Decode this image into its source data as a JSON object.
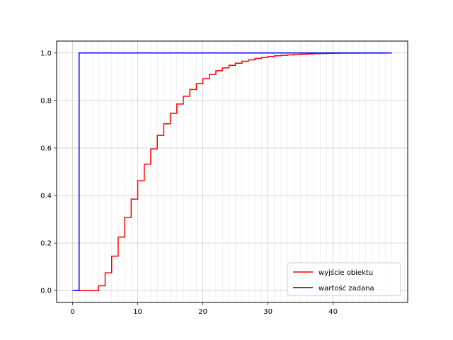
{
  "chart_data": {
    "type": "line",
    "step": "post",
    "xlim": [
      -2.45,
      51.45
    ],
    "ylim": [
      -0.05,
      1.05
    ],
    "x_ticks": [
      0,
      10,
      20,
      30,
      40
    ],
    "y_ticks": [
      0.0,
      0.2,
      0.4,
      0.6,
      0.8,
      1.0
    ],
    "x_tick_labels": [
      "0",
      "10",
      "20",
      "30",
      "40"
    ],
    "y_tick_labels": [
      "0.0",
      "0.2",
      "0.4",
      "0.6",
      "0.8",
      "1.0"
    ],
    "grid": {
      "major": true,
      "minor_x": true
    },
    "legend_position": "lower-right",
    "series": [
      {
        "name": "wyjście obiektu",
        "color": "#ff0000",
        "x": [
          1,
          2,
          3,
          4,
          5,
          6,
          7,
          8,
          9,
          10,
          11,
          12,
          13,
          14,
          15,
          16,
          17,
          18,
          19,
          20,
          21,
          22,
          23,
          24,
          25,
          26,
          27,
          28,
          29,
          30,
          31,
          32,
          33,
          34,
          35,
          36,
          37,
          38,
          39,
          40,
          41,
          42,
          43,
          44,
          45,
          46,
          47,
          48,
          49
        ],
        "y": [
          0,
          0,
          0,
          0.02,
          0.075,
          0.145,
          0.225,
          0.308,
          0.385,
          0.462,
          0.532,
          0.596,
          0.653,
          0.702,
          0.746,
          0.785,
          0.818,
          0.846,
          0.871,
          0.892,
          0.91,
          0.925,
          0.937,
          0.948,
          0.957,
          0.965,
          0.971,
          0.977,
          0.981,
          0.985,
          0.988,
          0.99,
          0.992,
          0.994,
          0.995,
          0.996,
          0.997,
          0.998,
          0.9985,
          0.999,
          0.9992,
          0.9994,
          0.9995,
          0.9996,
          0.9997,
          0.9998,
          0.9998,
          0.9999,
          0.9999
        ]
      },
      {
        "name": "wartość zadana",
        "color": "#0000ff",
        "x": [
          0,
          1,
          49
        ],
        "y": [
          0,
          1,
          1
        ]
      }
    ]
  }
}
